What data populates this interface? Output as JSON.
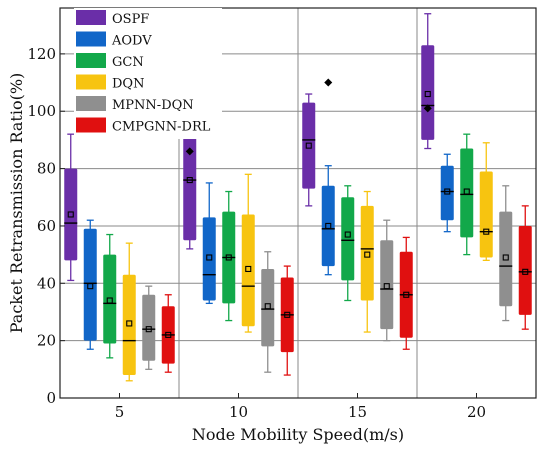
{
  "chart_data": {
    "type": "box",
    "title": "",
    "xlabel": "Node Mobility Speed(m/s)",
    "ylabel": "Packet Retransmission Ratio(%)",
    "ylim": [
      0,
      136
    ],
    "yticks": [
      0,
      20,
      40,
      60,
      80,
      100,
      120
    ],
    "categories": [
      "5",
      "10",
      "15",
      "20"
    ],
    "grid": true,
    "legend_position": "top-left",
    "series": [
      {
        "name": "OSPF",
        "color": "#6a2ea8",
        "boxes": [
          {
            "whisker_low": 41,
            "q1": 48,
            "median": 61,
            "mean": 64,
            "q3": 80,
            "whisker_high": 92,
            "outliers": []
          },
          {
            "whisker_low": 52,
            "q1": 55,
            "median": 76,
            "mean": 76,
            "q3": 97,
            "whisker_high": 102,
            "outliers": [
              86
            ]
          },
          {
            "whisker_low": 67,
            "q1": 73,
            "median": 90,
            "mean": 88,
            "q3": 103,
            "whisker_high": 106,
            "outliers": []
          },
          {
            "whisker_low": 87,
            "q1": 90,
            "median": 102,
            "mean": 106,
            "q3": 123,
            "whisker_high": 134,
            "outliers": [
              101
            ]
          }
        ]
      },
      {
        "name": "AODV",
        "color": "#1166c8",
        "boxes": [
          {
            "whisker_low": 17,
            "q1": 20,
            "median": 40,
            "mean": 39,
            "q3": 59,
            "whisker_high": 62,
            "outliers": []
          },
          {
            "whisker_low": 33,
            "q1": 34,
            "median": 43,
            "mean": 49,
            "q3": 63,
            "whisker_high": 75,
            "outliers": []
          },
          {
            "whisker_low": 43,
            "q1": 46,
            "median": 59,
            "mean": 60,
            "q3": 74,
            "whisker_high": 81,
            "outliers": [
              110
            ]
          },
          {
            "whisker_low": 58,
            "q1": 62,
            "median": 72,
            "mean": 72,
            "q3": 81,
            "whisker_high": 85,
            "outliers": []
          }
        ]
      },
      {
        "name": "GCN",
        "color": "#12a84a",
        "boxes": [
          {
            "whisker_low": 14,
            "q1": 19,
            "median": 33,
            "mean": 34,
            "q3": 50,
            "whisker_high": 57,
            "outliers": []
          },
          {
            "whisker_low": 27,
            "q1": 33,
            "median": 49,
            "mean": 49,
            "q3": 65,
            "whisker_high": 72,
            "outliers": []
          },
          {
            "whisker_low": 34,
            "q1": 41,
            "median": 55,
            "mean": 57,
            "q3": 70,
            "whisker_high": 74,
            "outliers": []
          },
          {
            "whisker_low": 50,
            "q1": 56,
            "median": 71,
            "mean": 72,
            "q3": 87,
            "whisker_high": 92,
            "outliers": []
          }
        ]
      },
      {
        "name": "DQN",
        "color": "#f7c410",
        "boxes": [
          {
            "whisker_low": 6,
            "q1": 8,
            "median": 20,
            "mean": 26,
            "q3": 43,
            "whisker_high": 54,
            "outliers": []
          },
          {
            "whisker_low": 23,
            "q1": 25,
            "median": 39,
            "mean": 45,
            "q3": 64,
            "whisker_high": 78,
            "outliers": []
          },
          {
            "whisker_low": 23,
            "q1": 34,
            "median": 52,
            "mean": 50,
            "q3": 67,
            "whisker_high": 72,
            "outliers": []
          },
          {
            "whisker_low": 48,
            "q1": 49,
            "median": 58,
            "mean": 58,
            "q3": 79,
            "whisker_high": 89,
            "outliers": []
          }
        ]
      },
      {
        "name": "MPNN-DQN",
        "color": "#8f8f8f",
        "boxes": [
          {
            "whisker_low": 10,
            "q1": 13,
            "median": 24,
            "mean": 24,
            "q3": 36,
            "whisker_high": 39,
            "outliers": []
          },
          {
            "whisker_low": 9,
            "q1": 18,
            "median": 31,
            "mean": 32,
            "q3": 45,
            "whisker_high": 51,
            "outliers": []
          },
          {
            "whisker_low": 20,
            "q1": 24,
            "median": 38,
            "mean": 39,
            "q3": 55,
            "whisker_high": 62,
            "outliers": []
          },
          {
            "whisker_low": 27,
            "q1": 32,
            "median": 46,
            "mean": 49,
            "q3": 65,
            "whisker_high": 74,
            "outliers": []
          }
        ]
      },
      {
        "name": "CMPGNN-DRL",
        "color": "#e01010",
        "boxes": [
          {
            "whisker_low": 9,
            "q1": 12,
            "median": 22,
            "mean": 22,
            "q3": 32,
            "whisker_high": 36,
            "outliers": []
          },
          {
            "whisker_low": 8,
            "q1": 16,
            "median": 29,
            "mean": 29,
            "q3": 42,
            "whisker_high": 46,
            "outliers": []
          },
          {
            "whisker_low": 17,
            "q1": 21,
            "median": 36,
            "mean": 36,
            "q3": 51,
            "whisker_high": 56,
            "outliers": []
          },
          {
            "whisker_low": 24,
            "q1": 29,
            "median": 44,
            "mean": 44,
            "q3": 60,
            "whisker_high": 67,
            "outliers": []
          }
        ]
      }
    ]
  }
}
